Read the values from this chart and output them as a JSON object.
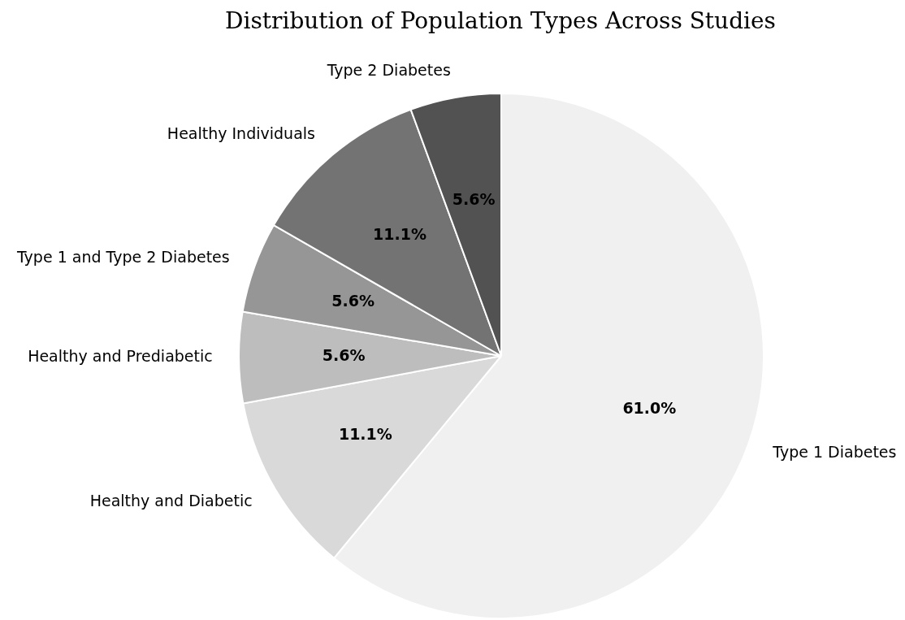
{
  "chart_data": {
    "type": "pie",
    "title": "Distribution of Population Types Across Studies",
    "categories": [
      "Type 1 Diabetes",
      "Healthy and Diabetic",
      "Healthy and Prediabetic",
      "Type 1 and Type 2 Diabetes",
      "Healthy Individuals",
      "Type 2 Diabetes"
    ],
    "values": [
      61.0,
      11.1,
      5.6,
      5.6,
      11.1,
      5.6
    ],
    "colors": [
      "#f0f0f0",
      "#d9d9d9",
      "#bdbdbd",
      "#969696",
      "#737373",
      "#525252"
    ],
    "value_labels": [
      "61.0%",
      "11.1%",
      "5.6%",
      "5.6%",
      "11.1%",
      "5.6%"
    ],
    "legend": false
  }
}
